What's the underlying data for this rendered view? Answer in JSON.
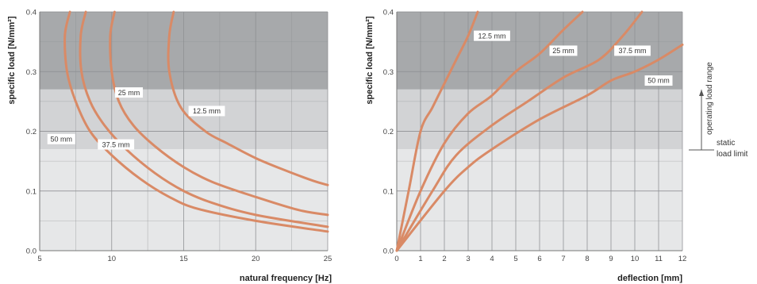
{
  "colors": {
    "curve": "#d98a66",
    "zone_top": "#a7a9ab",
    "zone_mid": "#d2d3d5",
    "zone_low": "#e6e7e8",
    "grid": "#8e9093"
  },
  "chart_data": [
    {
      "type": "line",
      "xlabel": "natural frequency [Hz]",
      "ylabel": "specific load [N/mm²]",
      "xlim": [
        5,
        25
      ],
      "ylim": [
        0,
        0.4
      ],
      "x_ticks": [
        "5",
        "10",
        "15",
        "20",
        "25"
      ],
      "y_ticks": [
        "0.0",
        "0.1",
        "0.2",
        "0.3",
        "0.4"
      ],
      "grid": true,
      "bands": [
        {
          "from": 0.27,
          "to": 0.4,
          "fill": "zone_top"
        },
        {
          "from": 0.17,
          "to": 0.27,
          "fill": "zone_mid"
        },
        {
          "from": 0,
          "to": 0.17,
          "fill": "zone_low"
        }
      ],
      "series": [
        {
          "name": "12.5 mm",
          "points": [
            [
              14.3,
              0.4
            ],
            [
              14.0,
              0.36
            ],
            [
              14.0,
              0.3
            ],
            [
              14.8,
              0.24
            ],
            [
              16.5,
              0.2
            ],
            [
              18.0,
              0.18
            ],
            [
              20.0,
              0.155
            ],
            [
              22.0,
              0.135
            ],
            [
              24.0,
              0.117
            ],
            [
              25.0,
              0.11
            ]
          ]
        },
        {
          "name": "25 mm",
          "points": [
            [
              10.2,
              0.4
            ],
            [
              9.9,
              0.36
            ],
            [
              10.0,
              0.3
            ],
            [
              10.5,
              0.25
            ],
            [
              11.5,
              0.21
            ],
            [
              13.0,
              0.175
            ],
            [
              15.0,
              0.14
            ],
            [
              17.0,
              0.115
            ],
            [
              20.0,
              0.09
            ],
            [
              23.0,
              0.068
            ],
            [
              25.0,
              0.06
            ]
          ]
        },
        {
          "name": "37.5 mm",
          "points": [
            [
              8.2,
              0.4
            ],
            [
              7.85,
              0.36
            ],
            [
              7.9,
              0.3
            ],
            [
              8.5,
              0.25
            ],
            [
              9.5,
              0.21
            ],
            [
              11.0,
              0.17
            ],
            [
              13.0,
              0.13
            ],
            [
              15.0,
              0.1
            ],
            [
              17.0,
              0.08
            ],
            [
              20.0,
              0.06
            ],
            [
              25.0,
              0.04
            ]
          ]
        },
        {
          "name": "50 mm",
          "points": [
            [
              7.1,
              0.4
            ],
            [
              6.75,
              0.36
            ],
            [
              6.9,
              0.3
            ],
            [
              7.5,
              0.25
            ],
            [
              8.5,
              0.2
            ],
            [
              10.0,
              0.16
            ],
            [
              12.0,
              0.12
            ],
            [
              14.0,
              0.09
            ],
            [
              16.0,
              0.07
            ],
            [
              20.0,
              0.05
            ],
            [
              25.0,
              0.032
            ]
          ]
        }
      ],
      "labels": [
        {
          "text": "12.5 mm",
          "x": 16.6,
          "y": 0.234
        },
        {
          "text": "25 mm",
          "x": 11.2,
          "y": 0.265
        },
        {
          "text": "37.5 mm",
          "x": 10.3,
          "y": 0.178
        },
        {
          "text": "50 mm",
          "x": 6.5,
          "y": 0.187
        }
      ]
    },
    {
      "type": "line",
      "xlabel": "deflection [mm]",
      "ylabel": "specific load [N/mm²]",
      "xlim": [
        0,
        12
      ],
      "ylim": [
        0,
        0.4
      ],
      "x_ticks": [
        "0",
        "1",
        "2",
        "3",
        "4",
        "5",
        "6",
        "7",
        "8",
        "9",
        "10",
        "11",
        "12"
      ],
      "y_ticks": [
        "0.0",
        "0.1",
        "0.2",
        "0.3",
        "0.4"
      ],
      "grid": true,
      "bands": [
        {
          "from": 0.27,
          "to": 0.4,
          "fill": "zone_top"
        },
        {
          "from": 0.17,
          "to": 0.27,
          "fill": "zone_mid"
        },
        {
          "from": 0,
          "to": 0.17,
          "fill": "zone_low"
        }
      ],
      "series": [
        {
          "name": "12.5 mm",
          "points": [
            [
              0,
              0
            ],
            [
              0.5,
              0.1
            ],
            [
              1,
              0.2
            ],
            [
              1.5,
              0.24
            ],
            [
              2,
              0.28
            ],
            [
              2.5,
              0.32
            ],
            [
              3,
              0.36
            ],
            [
              3.4,
              0.4
            ]
          ]
        },
        {
          "name": "25 mm",
          "points": [
            [
              0,
              0
            ],
            [
              1,
              0.1
            ],
            [
              2,
              0.18
            ],
            [
              3,
              0.23
            ],
            [
              4,
              0.26
            ],
            [
              5,
              0.3
            ],
            [
              6,
              0.33
            ],
            [
              7,
              0.37
            ],
            [
              7.8,
              0.4
            ]
          ]
        },
        {
          "name": "37.5 mm",
          "points": [
            [
              0,
              0
            ],
            [
              1.5,
              0.1
            ],
            [
              2.5,
              0.16
            ],
            [
              4,
              0.21
            ],
            [
              5.5,
              0.25
            ],
            [
              7,
              0.29
            ],
            [
              8.5,
              0.32
            ],
            [
              9.5,
              0.36
            ],
            [
              10.3,
              0.4
            ]
          ]
        },
        {
          "name": "50 mm",
          "points": [
            [
              0,
              0
            ],
            [
              2,
              0.1
            ],
            [
              3,
              0.14
            ],
            [
              4,
              0.17
            ],
            [
              6,
              0.22
            ],
            [
              8,
              0.26
            ],
            [
              9,
              0.285
            ],
            [
              10,
              0.3
            ],
            [
              11,
              0.32
            ],
            [
              12,
              0.345
            ]
          ]
        }
      ],
      "labels": [
        {
          "text": "12.5 mm",
          "x": 4.0,
          "y": 0.36
        },
        {
          "text": "25 mm",
          "x": 7.0,
          "y": 0.335
        },
        {
          "text": "37.5 mm",
          "x": 9.9,
          "y": 0.335
        },
        {
          "text": "50 mm",
          "x": 11.0,
          "y": 0.285
        }
      ],
      "side_annotations": {
        "operating": "operating load range",
        "static_line1": "static",
        "static_line2": "load limit"
      }
    }
  ]
}
